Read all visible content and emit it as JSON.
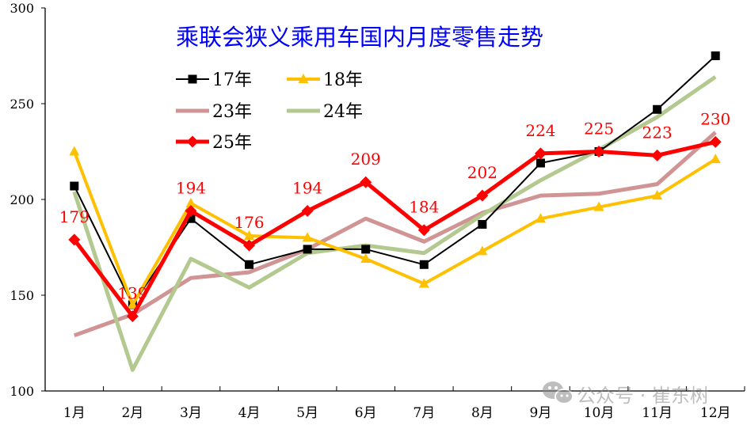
{
  "chart_data": {
    "type": "line",
    "title": "乘联会狭义乘用车国内月度零售走势",
    "xlabel": "",
    "ylabel": "",
    "ylim": [
      100,
      300
    ],
    "yticks": [
      100,
      150,
      200,
      250,
      300
    ],
    "grid": false,
    "legend_position": "upper-left-inside",
    "categories": [
      "1月",
      "2月",
      "3月",
      "4月",
      "5月",
      "6月",
      "7月",
      "8月",
      "9月",
      "10月",
      "11月",
      "12月"
    ],
    "series": [
      {
        "name": "17年",
        "color": "#000000",
        "marker": "square",
        "width": 2,
        "values": [
          207,
          145,
          190,
          166,
          174,
          174,
          166,
          187,
          219,
          225,
          247,
          275
        ]
      },
      {
        "name": "18年",
        "color": "#FFC000",
        "marker": "triangle",
        "width": 4,
        "values": [
          225,
          145,
          198,
          181,
          180,
          169,
          156,
          173,
          190,
          196,
          202,
          221
        ]
      },
      {
        "name": "23年",
        "color": "#D09494",
        "marker": "none",
        "width": 5,
        "values": [
          129,
          140,
          159,
          162,
          174,
          190,
          178,
          193,
          202,
          203,
          208,
          235
        ]
      },
      {
        "name": "24年",
        "color": "#B3C98F",
        "marker": "none",
        "width": 5,
        "values": [
          204,
          111,
          169,
          154,
          172,
          176,
          172,
          192,
          210,
          226,
          243,
          264
        ]
      },
      {
        "name": "25年",
        "color": "#FF0000",
        "marker": "diamond",
        "width": 5,
        "values": [
          179,
          139,
          194,
          176,
          194,
          209,
          184,
          202,
          224,
          225,
          223,
          230
        ],
        "data_labels": [
          "179",
          "139",
          "194",
          "176",
          "194",
          "209",
          "184",
          "202",
          "224",
          "225",
          "223",
          "230"
        ]
      }
    ]
  },
  "title_color": "#0000FF",
  "label_color": "#FF0000",
  "watermark": {
    "text": "公众号 · 崔东树",
    "icon": "wechat-icon"
  }
}
